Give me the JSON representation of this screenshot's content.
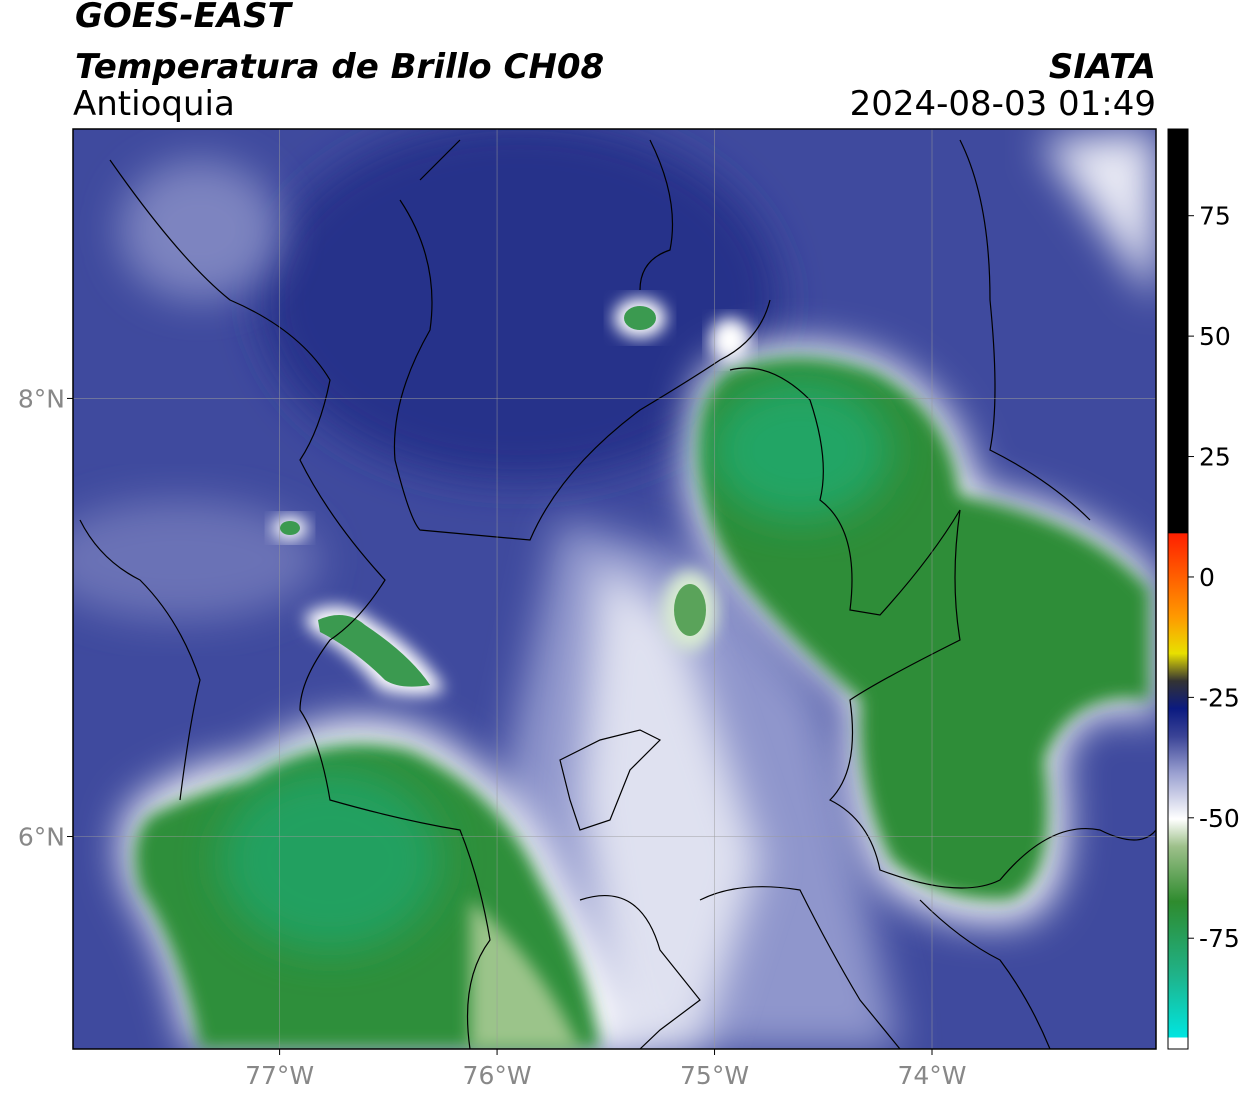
{
  "header": {
    "satellite": "GOES-EAST",
    "product": "Temperatura de Brillo CH08",
    "region": "Antioquia",
    "source": "SIATA",
    "datetime": "2024-08-03 01:49"
  },
  "map": {
    "xlim": [
      -77.95,
      -72.97
    ],
    "ylim": [
      5.03,
      9.23
    ],
    "lon_ticks": [
      {
        "value": -77,
        "label": "77°W"
      },
      {
        "value": -76,
        "label": "76°W"
      },
      {
        "value": -75,
        "label": "75°W"
      },
      {
        "value": -74,
        "label": "74°W"
      }
    ],
    "lat_ticks": [
      {
        "value": 8,
        "label": "8°N"
      },
      {
        "value": 6,
        "label": "6°N"
      }
    ]
  },
  "colorbar": {
    "lim": [
      -98,
      93
    ],
    "ticks": [
      75,
      50,
      25,
      0,
      -25,
      -50,
      -75
    ]
  }
}
